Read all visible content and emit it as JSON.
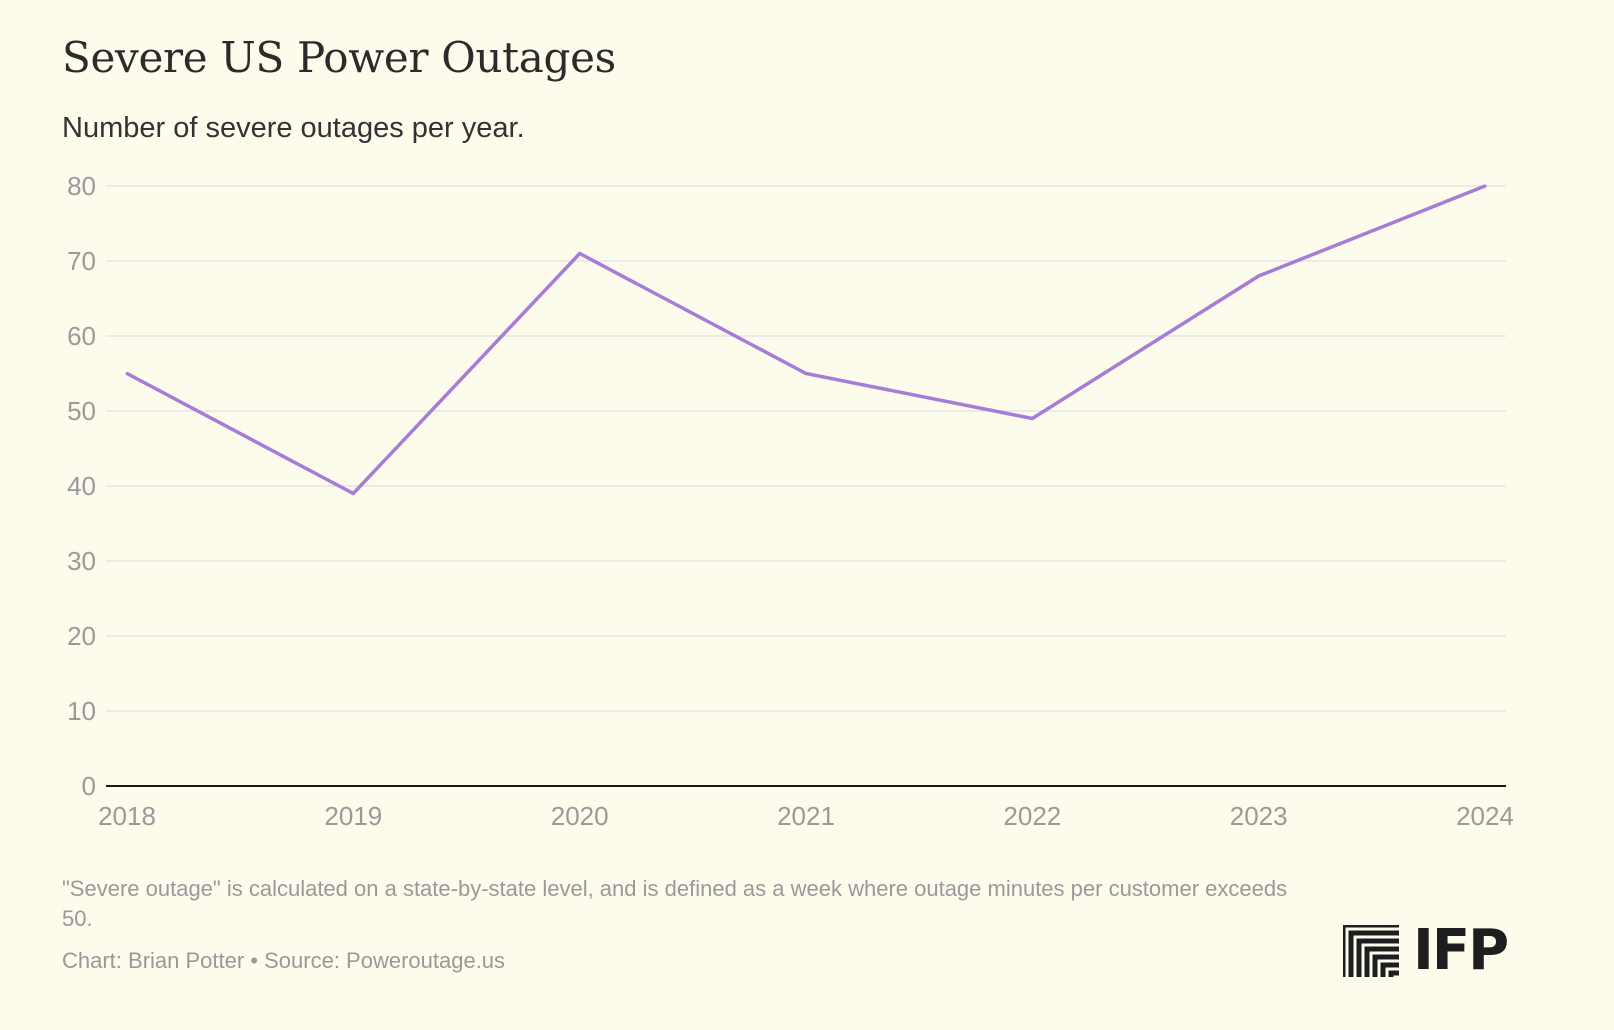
{
  "chart_data": {
    "type": "line",
    "title": "Severe US Power Outages",
    "subtitle": "Number of severe outages per year.",
    "xlabel": "",
    "ylabel": "",
    "x": [
      "2018",
      "2019",
      "2020",
      "2021",
      "2022",
      "2023",
      "2024"
    ],
    "series": [
      {
        "values": [
          55,
          39,
          71,
          55,
          49,
          68,
          80
        ]
      }
    ],
    "ylim": [
      0,
      80
    ],
    "yticks": [
      0,
      10,
      20,
      30,
      40,
      50,
      60,
      70,
      80
    ],
    "grid": "horizontal",
    "legend": "none",
    "colors": {
      "line": "#a57cd6",
      "grid": "#e4e4e4",
      "axis": "#1a1a1a",
      "background": "#fdfbec"
    }
  },
  "footnote": "\"Severe outage\" is calculated on a state-by-state level, and is defined as a week where outage minutes per customer exceeds 50.",
  "credit": "Chart: Brian Potter • Source: Poweroutage.us",
  "logo": {
    "text": "IFP",
    "icon": "ifp-stairs-icon"
  }
}
